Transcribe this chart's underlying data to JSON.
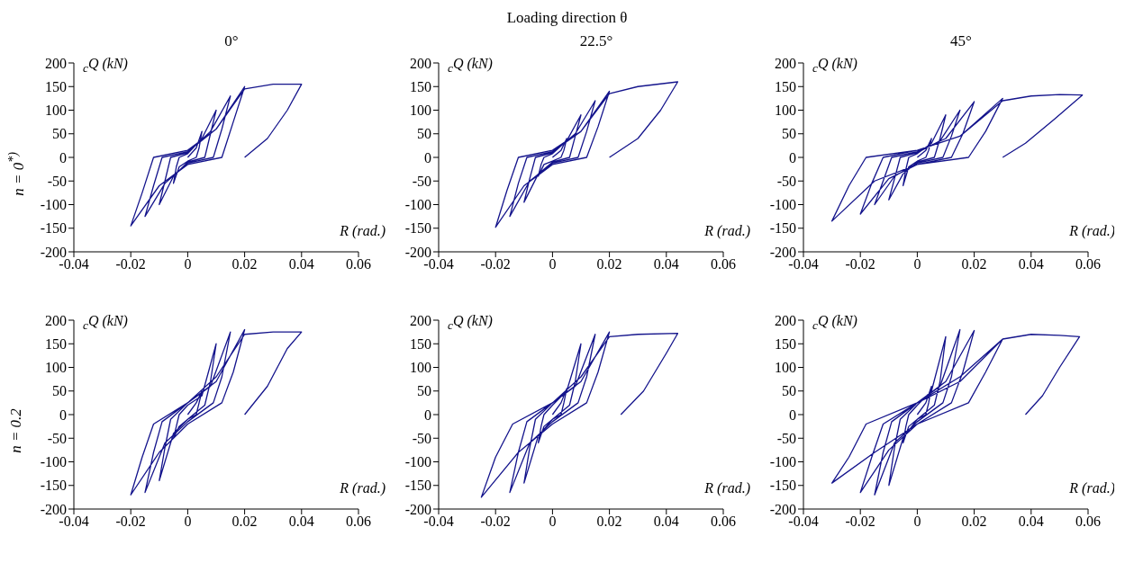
{
  "chart_data": [
    {
      "type": "line",
      "title": "0°",
      "annotations": [
        "Loading direction θ",
        "n = 0$^{*)}$"
      ],
      "xlabel": "R (rad.)",
      "ylabel": "$_{c}$Q (kN)",
      "xlim": [
        -0.04,
        0.06
      ],
      "xticks": [
        -0.04,
        -0.02,
        0,
        0.02,
        0.04,
        0.06
      ],
      "ylim": [
        -200,
        200
      ],
      "yticks": [
        -200,
        -150,
        -100,
        -50,
        0,
        50,
        100,
        150,
        200
      ],
      "marker": "none",
      "series": [
        {
          "color": "#14148c",
          "x": [
            0,
            0.003,
            0.005,
            0.004,
            0.003,
            0,
            -0.003,
            -0.005,
            -0.004,
            -0.003,
            0,
            0.005,
            0.01,
            0.008,
            0.006,
            0,
            -0.005,
            -0.01,
            -0.008,
            -0.006,
            0,
            0.008,
            0.015,
            0.012,
            0.009,
            0,
            -0.008,
            -0.015,
            -0.012,
            -0.009,
            0,
            0.01,
            0.02,
            0.016,
            0.012,
            0,
            -0.01,
            -0.02,
            -0.016,
            -0.012,
            0,
            0.01,
            0.02,
            0.03,
            0.04,
            0.035,
            0.028,
            0.02
          ],
          "values": [
            0,
            20,
            55,
            20,
            0,
            -8,
            -20,
            -55,
            -20,
            0,
            8,
            40,
            100,
            50,
            0,
            -10,
            -40,
            -100,
            -50,
            0,
            10,
            55,
            130,
            60,
            0,
            -12,
            -55,
            -125,
            -60,
            0,
            12,
            60,
            150,
            75,
            0,
            -15,
            -60,
            -145,
            -75,
            0,
            15,
            60,
            145,
            155,
            155,
            100,
            40,
            0
          ]
        }
      ]
    },
    {
      "type": "line",
      "title": "22.5°",
      "xlabel": "R (rad.)",
      "ylabel": "$_{c}$Q (kN)",
      "xlim": [
        -0.04,
        0.06
      ],
      "xticks": [
        -0.04,
        -0.02,
        0,
        0.02,
        0.04,
        0.06
      ],
      "ylim": [
        -200,
        200
      ],
      "yticks": [
        -200,
        -150,
        -100,
        -50,
        0,
        50,
        100,
        150,
        200
      ],
      "marker": "none",
      "series": [
        {
          "color": "#14148c",
          "x": [
            0,
            0.003,
            0.005,
            0.004,
            0.003,
            0,
            -0.003,
            -0.005,
            -0.004,
            -0.003,
            0,
            0.005,
            0.01,
            0.008,
            0.006,
            0,
            -0.005,
            -0.01,
            -0.008,
            -0.006,
            0,
            0.008,
            0.015,
            0.012,
            0.009,
            0,
            -0.008,
            -0.015,
            -0.012,
            -0.009,
            0,
            0.01,
            0.02,
            0.016,
            0.012,
            0,
            -0.01,
            -0.02,
            -0.016,
            -0.012,
            0,
            0.01,
            0.02,
            0.03,
            0.044,
            0.038,
            0.03,
            0.02
          ],
          "values": [
            0,
            15,
            40,
            15,
            0,
            -8,
            -15,
            -40,
            -15,
            0,
            8,
            35,
            90,
            45,
            0,
            -10,
            -35,
            -95,
            -45,
            0,
            10,
            50,
            120,
            55,
            0,
            -12,
            -50,
            -125,
            -55,
            0,
            12,
            55,
            140,
            65,
            0,
            -15,
            -60,
            -148,
            -70,
            0,
            15,
            55,
            135,
            150,
            160,
            100,
            40,
            0
          ]
        }
      ]
    },
    {
      "type": "line",
      "title": "45°",
      "xlabel": "R (rad.)",
      "ylabel": "$_{c}$Q (kN)",
      "xlim": [
        -0.04,
        0.06
      ],
      "xticks": [
        -0.04,
        -0.02,
        0,
        0.02,
        0.04,
        0.06
      ],
      "ylim": [
        -200,
        200
      ],
      "yticks": [
        -200,
        -150,
        -100,
        -50,
        0,
        50,
        100,
        150,
        200
      ],
      "marker": "none",
      "series": [
        {
          "color": "#14148c",
          "x": [
            0,
            0.003,
            0.005,
            0.004,
            0.003,
            0,
            -0.003,
            -0.005,
            -0.004,
            -0.003,
            0,
            0.005,
            0.01,
            0.008,
            0.006,
            0,
            -0.005,
            -0.01,
            -0.008,
            -0.006,
            0,
            0.008,
            0.015,
            0.012,
            0.009,
            0,
            -0.008,
            -0.015,
            -0.012,
            -0.009,
            0,
            0.01,
            0.02,
            0.016,
            0.012,
            0,
            -0.01,
            -0.02,
            -0.016,
            -0.012,
            0,
            0.015,
            0.03,
            0.024,
            0.018,
            0,
            -0.015,
            -0.03,
            -0.024,
            -0.018,
            0,
            0.015,
            0.03,
            0.04,
            0.05,
            0.058,
            0.048,
            0.038,
            0.03
          ],
          "values": [
            0,
            15,
            40,
            15,
            0,
            -8,
            -20,
            -60,
            -25,
            0,
            8,
            30,
            90,
            40,
            0,
            -10,
            -35,
            -90,
            -45,
            0,
            10,
            35,
            100,
            45,
            0,
            -12,
            -40,
            -100,
            -50,
            0,
            12,
            40,
            118,
            50,
            0,
            -15,
            -45,
            -120,
            -55,
            0,
            15,
            45,
            125,
            55,
            0,
            -15,
            -50,
            -135,
            -60,
            0,
            15,
            45,
            120,
            130,
            133,
            132,
            80,
            30,
            0
          ]
        }
      ]
    },
    {
      "type": "line",
      "annotations": [
        "n = 0.2"
      ],
      "xlabel": "R (rad.)",
      "ylabel": "$_{c}$Q (kN)",
      "xlim": [
        -0.04,
        0.06
      ],
      "xticks": [
        -0.04,
        -0.02,
        0,
        0.02,
        0.04,
        0.06
      ],
      "ylim": [
        -200,
        200
      ],
      "yticks": [
        -200,
        -150,
        -100,
        -50,
        0,
        50,
        100,
        150,
        200
      ],
      "marker": "none",
      "series": [
        {
          "color": "#14148c",
          "x": [
            0,
            0.003,
            0.005,
            0.004,
            0.003,
            0,
            -0.003,
            -0.005,
            -0.004,
            -0.003,
            0,
            0.005,
            0.01,
            0.008,
            0.006,
            0,
            -0.005,
            -0.01,
            -0.008,
            -0.006,
            0,
            0.008,
            0.015,
            0.012,
            0.009,
            0,
            -0.008,
            -0.015,
            -0.012,
            -0.009,
            0,
            0.01,
            0.02,
            0.016,
            0.012,
            0,
            -0.01,
            -0.02,
            -0.016,
            -0.012,
            0,
            0.01,
            0.02,
            0.03,
            0.04,
            0.035,
            0.028,
            0.02
          ],
          "values": [
            0,
            25,
            50,
            25,
            0,
            -10,
            -25,
            -50,
            -25,
            0,
            20,
            40,
            150,
            70,
            20,
            -10,
            -40,
            -140,
            -70,
            -10,
            25,
            60,
            175,
            80,
            25,
            -15,
            -60,
            -165,
            -80,
            -15,
            25,
            70,
            180,
            90,
            25,
            -20,
            -80,
            -170,
            -90,
            -20,
            25,
            80,
            170,
            175,
            175,
            140,
            60,
            0
          ]
        }
      ]
    },
    {
      "type": "line",
      "xlabel": "R (rad.)",
      "ylabel": "$_{c}$Q (kN)",
      "xlim": [
        -0.04,
        0.06
      ],
      "xticks": [
        -0.04,
        -0.02,
        0,
        0.02,
        0.04,
        0.06
      ],
      "ylim": [
        -200,
        200
      ],
      "yticks": [
        -200,
        -150,
        -100,
        -50,
        0,
        50,
        100,
        150,
        200
      ],
      "marker": "none",
      "series": [
        {
          "color": "#14148c",
          "x": [
            0,
            0.003,
            0.005,
            0.004,
            0.003,
            0,
            -0.003,
            -0.005,
            -0.004,
            -0.003,
            0,
            0.005,
            0.01,
            0.008,
            0.006,
            0,
            -0.005,
            -0.01,
            -0.008,
            -0.006,
            0,
            0.008,
            0.015,
            0.012,
            0.009,
            0,
            -0.008,
            -0.015,
            -0.012,
            -0.009,
            0,
            0.01,
            0.02,
            0.016,
            0.012,
            0,
            -0.012,
            -0.025,
            -0.02,
            -0.014,
            0,
            0.01,
            0.02,
            0.03,
            0.044,
            0.04,
            0.032,
            0.024
          ],
          "values": [
            0,
            25,
            55,
            25,
            0,
            -10,
            -25,
            -60,
            -25,
            0,
            20,
            50,
            150,
            70,
            20,
            -10,
            -45,
            -145,
            -70,
            -10,
            25,
            60,
            170,
            80,
            25,
            -15,
            -60,
            -165,
            -80,
            -15,
            25,
            70,
            175,
            90,
            25,
            -20,
            -80,
            -175,
            -90,
            -20,
            25,
            80,
            165,
            170,
            172,
            130,
            50,
            0
          ]
        }
      ]
    },
    {
      "type": "line",
      "xlabel": "R (rad.)",
      "ylabel": "$_{c}$Q (kN)",
      "xlim": [
        -0.04,
        0.06
      ],
      "xticks": [
        -0.04,
        -0.02,
        0,
        0.02,
        0.04,
        0.06
      ],
      "ylim": [
        -200,
        200
      ],
      "yticks": [
        -200,
        -150,
        -100,
        -50,
        0,
        50,
        100,
        150,
        200
      ],
      "marker": "none",
      "series": [
        {
          "color": "#14148c",
          "x": [
            0,
            0.003,
            0.005,
            0.004,
            0.003,
            0,
            -0.003,
            -0.005,
            -0.004,
            -0.003,
            0,
            0.005,
            0.01,
            0.008,
            0.006,
            0,
            -0.005,
            -0.01,
            -0.008,
            -0.006,
            0,
            0.008,
            0.015,
            0.012,
            0.009,
            0,
            -0.008,
            -0.015,
            -0.012,
            -0.009,
            0,
            0.01,
            0.02,
            0.016,
            0.012,
            0,
            -0.01,
            -0.02,
            -0.016,
            -0.012,
            0,
            0.015,
            0.03,
            0.024,
            0.018,
            0,
            -0.015,
            -0.03,
            -0.024,
            -0.018,
            0,
            0.015,
            0.03,
            0.04,
            0.05,
            0.057,
            0.05,
            0.044,
            0.038
          ],
          "values": [
            0,
            25,
            60,
            25,
            0,
            -10,
            -25,
            -60,
            -25,
            0,
            20,
            50,
            165,
            70,
            20,
            -10,
            -50,
            -150,
            -70,
            -10,
            25,
            60,
            180,
            80,
            25,
            -15,
            -60,
            -170,
            -80,
            -15,
            25,
            70,
            178,
            90,
            25,
            -20,
            -75,
            -165,
            -90,
            -20,
            25,
            70,
            160,
            90,
            25,
            -20,
            -80,
            -145,
            -90,
            -20,
            25,
            80,
            160,
            170,
            168,
            165,
            100,
            40,
            0
          ]
        }
      ]
    }
  ]
}
